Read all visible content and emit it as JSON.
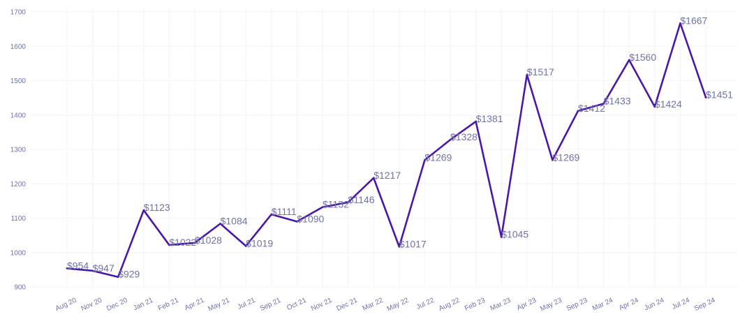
{
  "chart_data": {
    "type": "line",
    "title": "",
    "xlabel": "",
    "ylabel": "",
    "ylim": [
      900,
      1700
    ],
    "yticks": [
      "900",
      "1000",
      "1100",
      "1200",
      "1300",
      "1400",
      "1500",
      "1600",
      "1700"
    ],
    "grid": true,
    "legend": "none",
    "categories": [
      "Aug 20",
      "Nov 20",
      "Dec 20",
      "Jan 21",
      "Feb 21",
      "Apr 21",
      "May 21",
      "Jul 21",
      "Sep 21",
      "Oct 21",
      "Nov 21",
      "Dec 21",
      "Mar 22",
      "May 22",
      "Jul 22",
      "Aug 22",
      "Feb 23",
      "Mar 23",
      "Apr 23",
      "May 23",
      "Sep 23",
      "Mar 24",
      "Apr 24",
      "Jun 24",
      "Jul 24",
      "Sep 24"
    ],
    "series": [
      {
        "values": [
          954,
          947,
          929,
          1123,
          1022,
          1028,
          1084,
          1019,
          1111,
          1090,
          1132,
          1146,
          1217,
          1017,
          1269,
          1328,
          1381,
          1045,
          1517,
          1269,
          1412,
          1433,
          1560,
          1424,
          1667,
          1451
        ],
        "labels": [
          "$954",
          "$947",
          "$929",
          "$1123",
          "$1022",
          "$1028",
          "$1084",
          "$1019",
          "$1111",
          "$1090",
          "$1132",
          "$1146",
          "$1217",
          "$1017",
          "$1269",
          "$1328",
          "$1381",
          "$1045",
          "$1517",
          "$1269",
          "$1412",
          "$1433",
          "$1560",
          "$1424",
          "$1667",
          "$1451"
        ]
      }
    ]
  },
  "colors": {
    "line": "#4a17a8",
    "labels": "#6f72a8",
    "grid": "#f3f3f8"
  }
}
